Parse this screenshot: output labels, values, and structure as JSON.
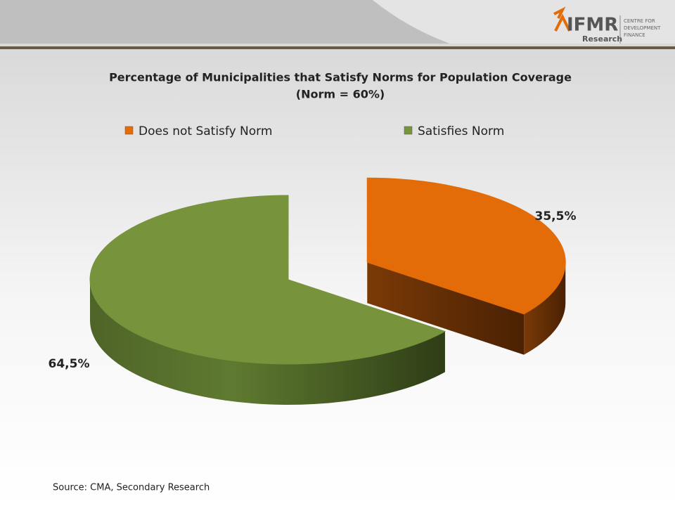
{
  "header": {
    "logo": "IFMR",
    "logo_sub": "Research",
    "logo_side": [
      "CENTRE FOR",
      "DEVELOPMENT",
      "FINANCE"
    ]
  },
  "chart_data": {
    "type": "pie",
    "title": "Percentage of Municipalities that Satisfy Norms for Population Coverage",
    "subtitle": "(Norm = 60%)",
    "categories": [
      "Does not Satisfy Norm",
      "Satisfies Norm"
    ],
    "values": [
      35.5,
      64.5
    ],
    "value_labels": [
      "35,5%",
      "64,5%"
    ],
    "colors": [
      "#e36c09",
      "#77933c"
    ]
  },
  "footer": {
    "source": "Source: CMA, Secondary Research"
  }
}
